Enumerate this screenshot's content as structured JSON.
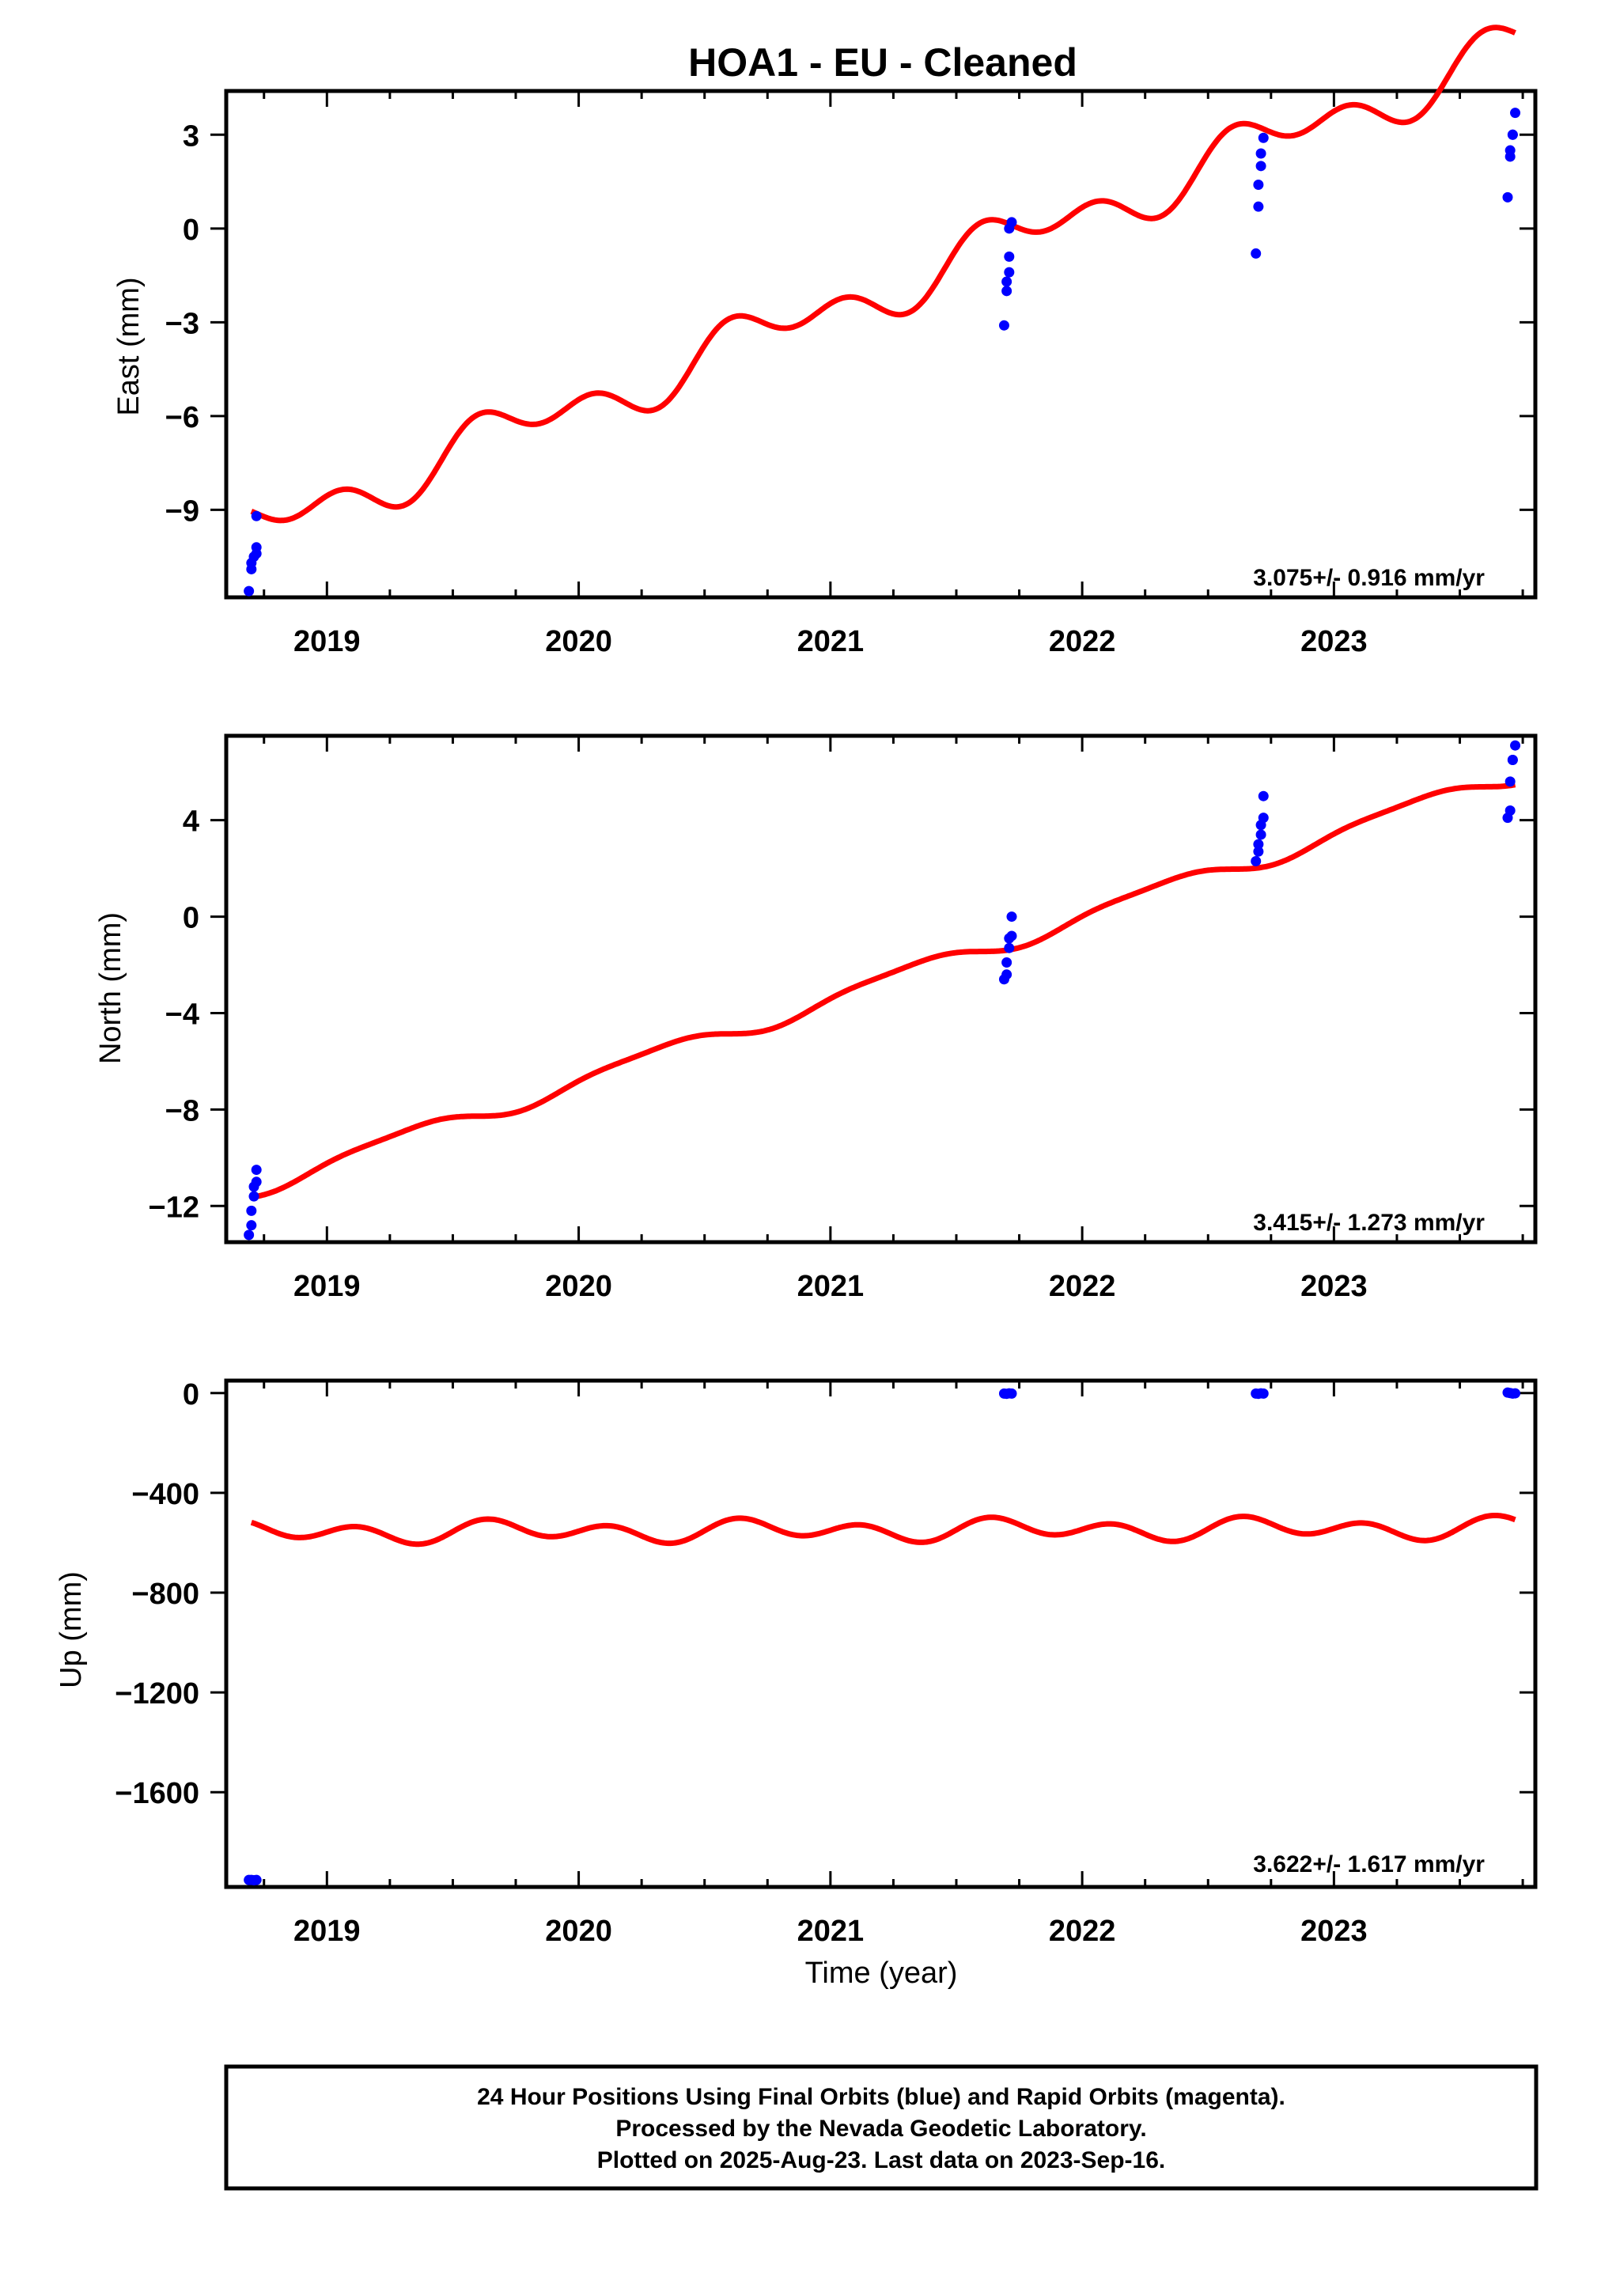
{
  "chart_data": {
    "title": "HOA1  - EU - Cleaned",
    "type": "scatter",
    "x_ticks": [
      "2019",
      "2020",
      "2021",
      "2022",
      "2023"
    ],
    "xlim": [
      2018.6,
      2023.8
    ],
    "xlabel": "Time (year)",
    "colors": {
      "final_orbits": "#0000ff",
      "model_fit": "#ff0000",
      "frame": "#000000"
    },
    "panels": [
      {
        "ylabel": "East (mm)",
        "ylim": [
          -11.8,
          4.4
        ],
        "yticks": [
          3,
          0,
          -3,
          -6,
          -9
        ],
        "ytick_labels": [
          "3",
          "0",
          "−3",
          "−6",
          "−9"
        ],
        "rate_text": "3.075+/- 0.916 mm/yr",
        "fit": {
          "start": 2018.7,
          "end": 2023.72,
          "intercept_2021": -2.6,
          "slope": 3.075,
          "annual_sin": -0.6,
          "annual_cos": -0.1,
          "semiannual_sin": 0.45,
          "semiannual_cos": 0.3
        },
        "points": [
          [
            2018.69,
            -11.6
          ],
          [
            2018.7,
            -10.9
          ],
          [
            2018.7,
            -10.7
          ],
          [
            2018.71,
            -10.5
          ],
          [
            2018.72,
            -10.4
          ],
          [
            2018.72,
            -10.2
          ],
          [
            2018.72,
            -9.2
          ],
          [
            2021.69,
            -3.1
          ],
          [
            2021.7,
            -2.0
          ],
          [
            2021.7,
            -1.7
          ],
          [
            2021.71,
            -1.4
          ],
          [
            2021.71,
            -0.9
          ],
          [
            2021.71,
            0.0
          ],
          [
            2021.72,
            0.2
          ],
          [
            2022.69,
            -0.8
          ],
          [
            2022.7,
            0.7
          ],
          [
            2022.7,
            1.4
          ],
          [
            2022.71,
            2.0
          ],
          [
            2022.71,
            2.4
          ],
          [
            2022.72,
            2.9
          ],
          [
            2023.69,
            1.0
          ],
          [
            2023.7,
            2.3
          ],
          [
            2023.7,
            2.5
          ],
          [
            2023.71,
            3.0
          ],
          [
            2023.71,
            3.0
          ],
          [
            2023.72,
            3.7
          ]
        ]
      },
      {
        "ylabel": "North (mm)",
        "ylim": [
          -13.5,
          7.5
        ],
        "yticks": [
          4,
          0,
          -4,
          -8,
          -12
        ],
        "ytick_labels": [
          "4",
          "0",
          "−4",
          "−8",
          "−12"
        ],
        "rate_text": "3.415+/- 1.273 mm/yr",
        "fit": {
          "start": 2018.7,
          "end": 2023.72,
          "intercept_2021": -3.4,
          "slope": 3.415,
          "annual_sin": 0.35,
          "annual_cos": -0.1,
          "semiannual_sin": 0.0,
          "semiannual_cos": 0.1
        },
        "points": [
          [
            2018.69,
            -13.2
          ],
          [
            2018.7,
            -12.8
          ],
          [
            2018.7,
            -12.2
          ],
          [
            2018.71,
            -11.6
          ],
          [
            2018.71,
            -11.2
          ],
          [
            2018.72,
            -11.0
          ],
          [
            2018.72,
            -10.5
          ],
          [
            2021.69,
            -2.6
          ],
          [
            2021.7,
            -2.4
          ],
          [
            2021.7,
            -1.9
          ],
          [
            2021.71,
            -1.3
          ],
          [
            2021.71,
            -0.9
          ],
          [
            2021.72,
            -0.8
          ],
          [
            2021.72,
            0.0
          ],
          [
            2022.69,
            2.3
          ],
          [
            2022.7,
            2.7
          ],
          [
            2022.7,
            3.0
          ],
          [
            2022.71,
            3.4
          ],
          [
            2022.71,
            3.8
          ],
          [
            2022.72,
            4.1
          ],
          [
            2022.72,
            5.0
          ],
          [
            2023.69,
            4.1
          ],
          [
            2023.7,
            4.4
          ],
          [
            2023.7,
            5.6
          ],
          [
            2023.71,
            6.5
          ],
          [
            2023.71,
            6.5
          ],
          [
            2023.72,
            7.1
          ]
        ]
      },
      {
        "ylabel": "Up (mm)",
        "ylim": [
          -1980,
          50
        ],
        "yticks": [
          0,
          -400,
          -800,
          -1200,
          -1600
        ],
        "ytick_labels": [
          "0",
          "−400",
          "−800",
          "−1200",
          "−1600"
        ],
        "rate_text": "3.622+/- 1.617 mm/yr",
        "fit": {
          "start": 2018.7,
          "end": 2023.72,
          "intercept_2021": -550,
          "slope": 3.622,
          "annual_sin": -20,
          "annual_cos": 0,
          "semiannual_sin": 35,
          "semiannual_cos": 0
        },
        "points": [
          [
            2018.69,
            -1952
          ],
          [
            2018.7,
            -1952
          ],
          [
            2018.71,
            -1953
          ],
          [
            2018.72,
            -1952
          ],
          [
            2021.69,
            -2
          ],
          [
            2021.7,
            -3
          ],
          [
            2021.71,
            -1
          ],
          [
            2021.72,
            -2
          ],
          [
            2022.69,
            -2
          ],
          [
            2022.7,
            -3
          ],
          [
            2022.71,
            -1
          ],
          [
            2022.72,
            -2
          ],
          [
            2023.69,
            2
          ],
          [
            2023.7,
            0
          ],
          [
            2023.71,
            -2
          ],
          [
            2023.72,
            -1
          ]
        ]
      }
    ]
  },
  "footer": {
    "line1": "24 Hour Positions Using Final Orbits (blue) and Rapid Orbits (magenta).",
    "line2": "Processed by the Nevada Geodetic Laboratory.",
    "line3": "Plotted on 2025-Aug-23. Last data on 2023-Sep-16."
  }
}
